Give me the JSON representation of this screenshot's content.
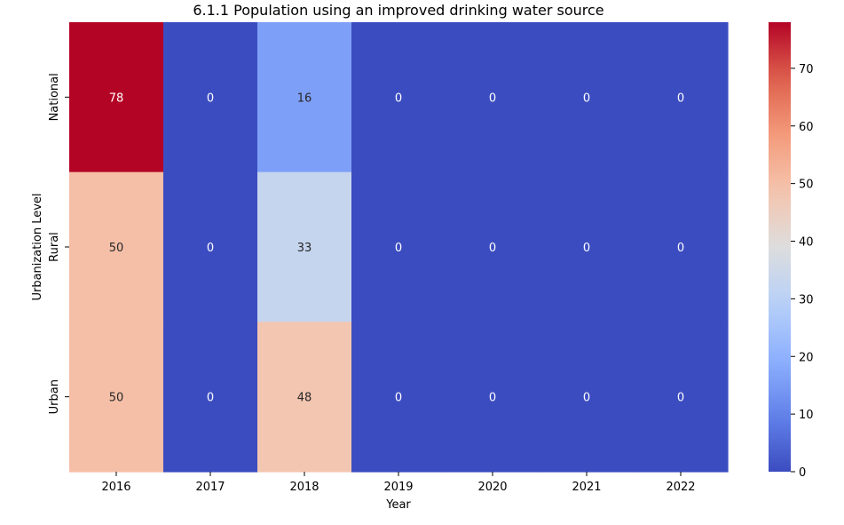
{
  "chart_data": {
    "type": "heatmap",
    "title": "6.1.1 Population using an improved drinking water source",
    "xlabel": "Year",
    "ylabel": "Urbanization Level",
    "x_categories": [
      "2016",
      "2017",
      "2018",
      "2019",
      "2020",
      "2021",
      "2022"
    ],
    "y_categories": [
      "National",
      "Rural",
      "Urban"
    ],
    "values": [
      [
        78,
        0,
        16,
        0,
        0,
        0,
        0
      ],
      [
        50,
        0,
        33,
        0,
        0,
        0,
        0
      ],
      [
        50,
        0,
        48,
        0,
        0,
        0,
        0
      ]
    ],
    "colorbar": {
      "min": 0,
      "max": 78,
      "ticks": [
        0,
        10,
        20,
        30,
        40,
        50,
        60,
        70
      ],
      "colormap": "coolwarm"
    },
    "grid": false
  }
}
